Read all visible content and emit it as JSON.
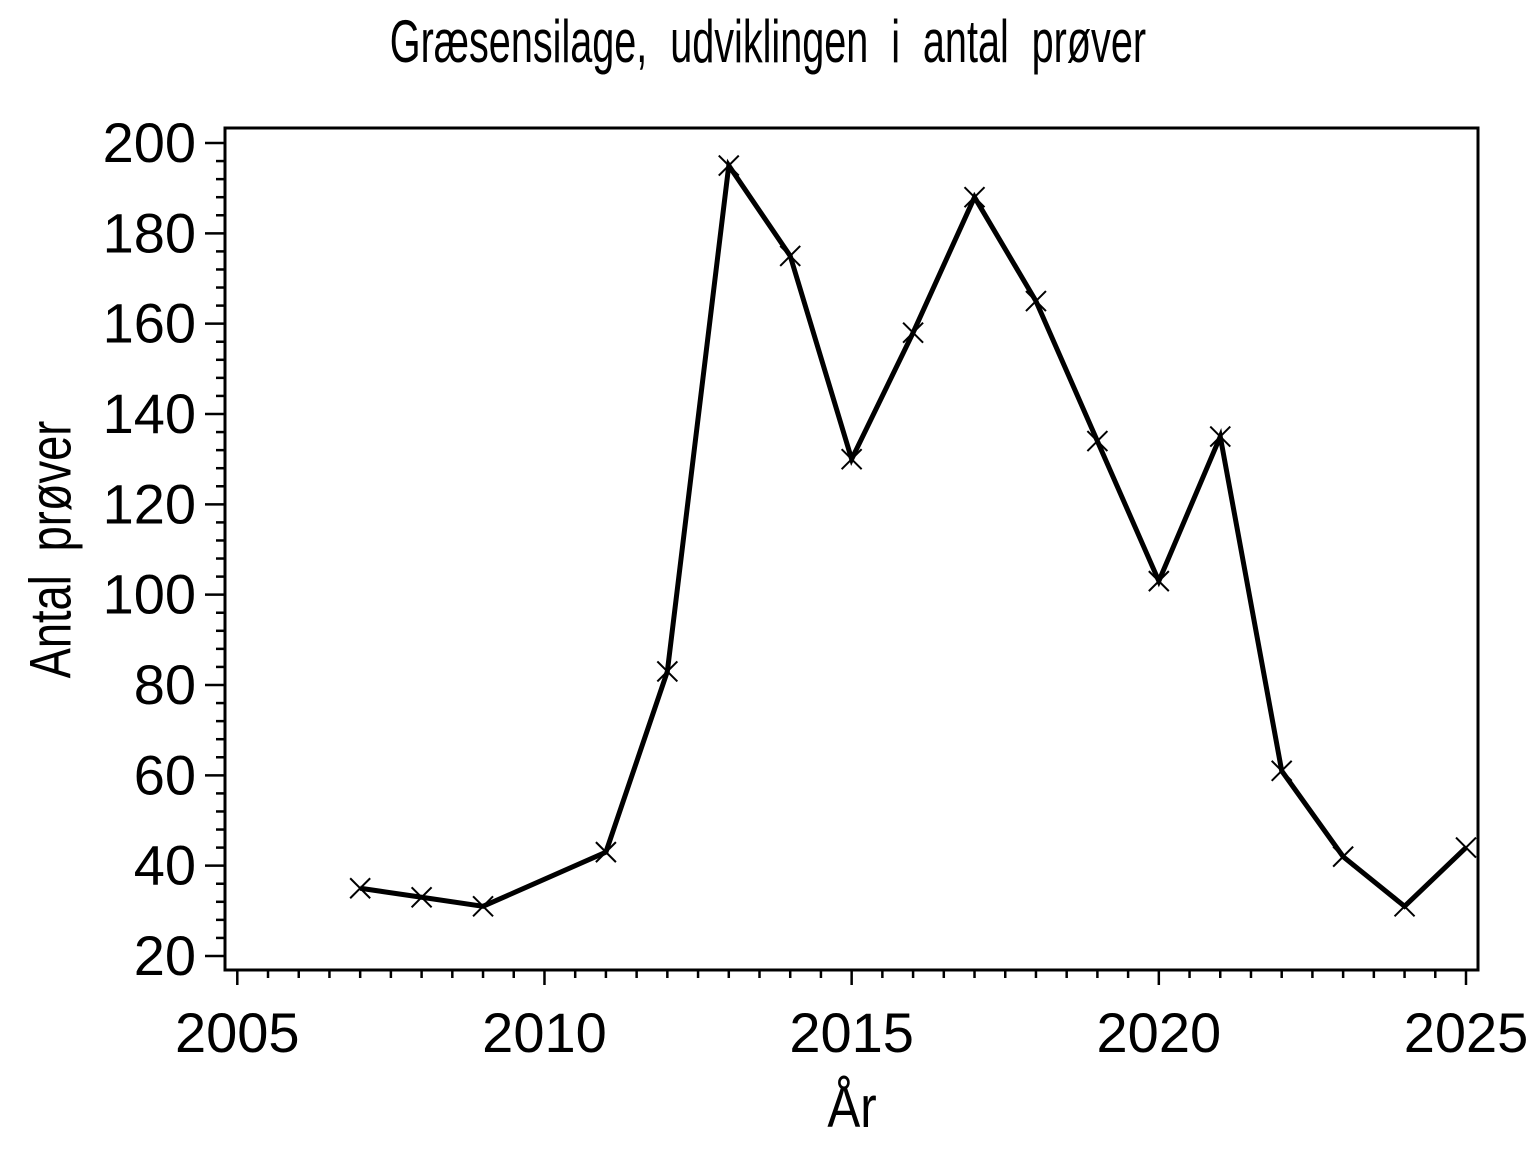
{
  "chart_data": {
    "type": "line",
    "title": "Græsensilage, udviklingen i antal prøver",
    "xlabel": "År",
    "ylabel": "Antal prøver",
    "x": [
      2007,
      2008,
      2009,
      2011,
      2012,
      2013,
      2014,
      2015,
      2016,
      2017,
      2018,
      2019,
      2020,
      2021,
      2022,
      2023,
      2024,
      2025
    ],
    "y": [
      35,
      33,
      31,
      43,
      83,
      195,
      175,
      130,
      158,
      188,
      165,
      134,
      103,
      135,
      61,
      42,
      31,
      44
    ],
    "marker": "x",
    "line_color": "#000000",
    "text_color": "#000000",
    "background_color": "#ffffff",
    "grid": false,
    "legend": "none",
    "x_axis": {
      "major_ticks": [
        2005,
        2010,
        2015,
        2020,
        2025
      ],
      "major_tick_labels": [
        "2005",
        "2010",
        "2015",
        "2020",
        "2025"
      ],
      "minor_step": 0.5,
      "range": [
        2005,
        2025
      ]
    },
    "y_axis": {
      "major_ticks": [
        20,
        40,
        60,
        80,
        100,
        120,
        140,
        160,
        180,
        200
      ],
      "major_tick_labels": [
        "20",
        "40",
        "60",
        "80",
        "100",
        "120",
        "140",
        "160",
        "180",
        "200"
      ],
      "minor_step": 4,
      "range": [
        20,
        200
      ]
    }
  }
}
